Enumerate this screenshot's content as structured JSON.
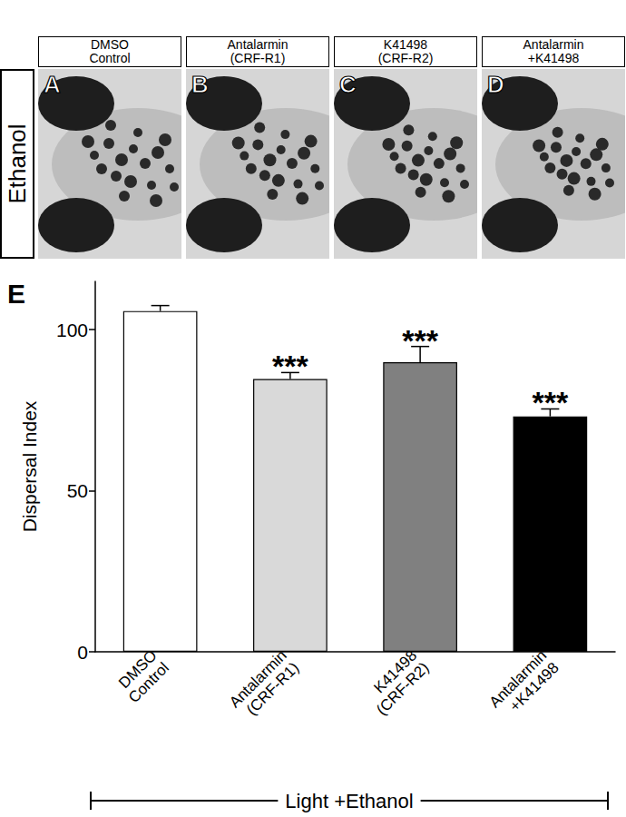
{
  "panels": {
    "row_label": "Ethanol",
    "items": [
      {
        "letter": "A",
        "header": "DMSO\nControl"
      },
      {
        "letter": "B",
        "header": "Antalarmin\n(CRF-R1)"
      },
      {
        "letter": "C",
        "header": "K41498\n(CRF-R2)"
      },
      {
        "letter": "D",
        "header": "Antalarmin\n+K41498"
      }
    ]
  },
  "chart_data": {
    "type": "bar",
    "panel_label": "E",
    "group_label": "Light +Ethanol",
    "y_label": "Dispersal Index",
    "categories": [
      "DMSO\nControl",
      "Antalarmin\n(CRF-R1)",
      "K41498\n(CRF-R2)",
      "Antalarmin\n+K41498"
    ],
    "values": [
      105.8,
      84.7,
      89.9,
      73.1
    ],
    "errors": [
      1.7,
      2.0,
      4.9,
      2.3
    ],
    "significance": [
      null,
      "***",
      "***",
      "***"
    ],
    "colors": [
      "#ffffff",
      "#d9d9d9",
      "#808080",
      "#000000"
    ],
    "ylim": [
      0,
      115
    ],
    "yticks": [
      0,
      50,
      100
    ],
    "grid": false
  }
}
